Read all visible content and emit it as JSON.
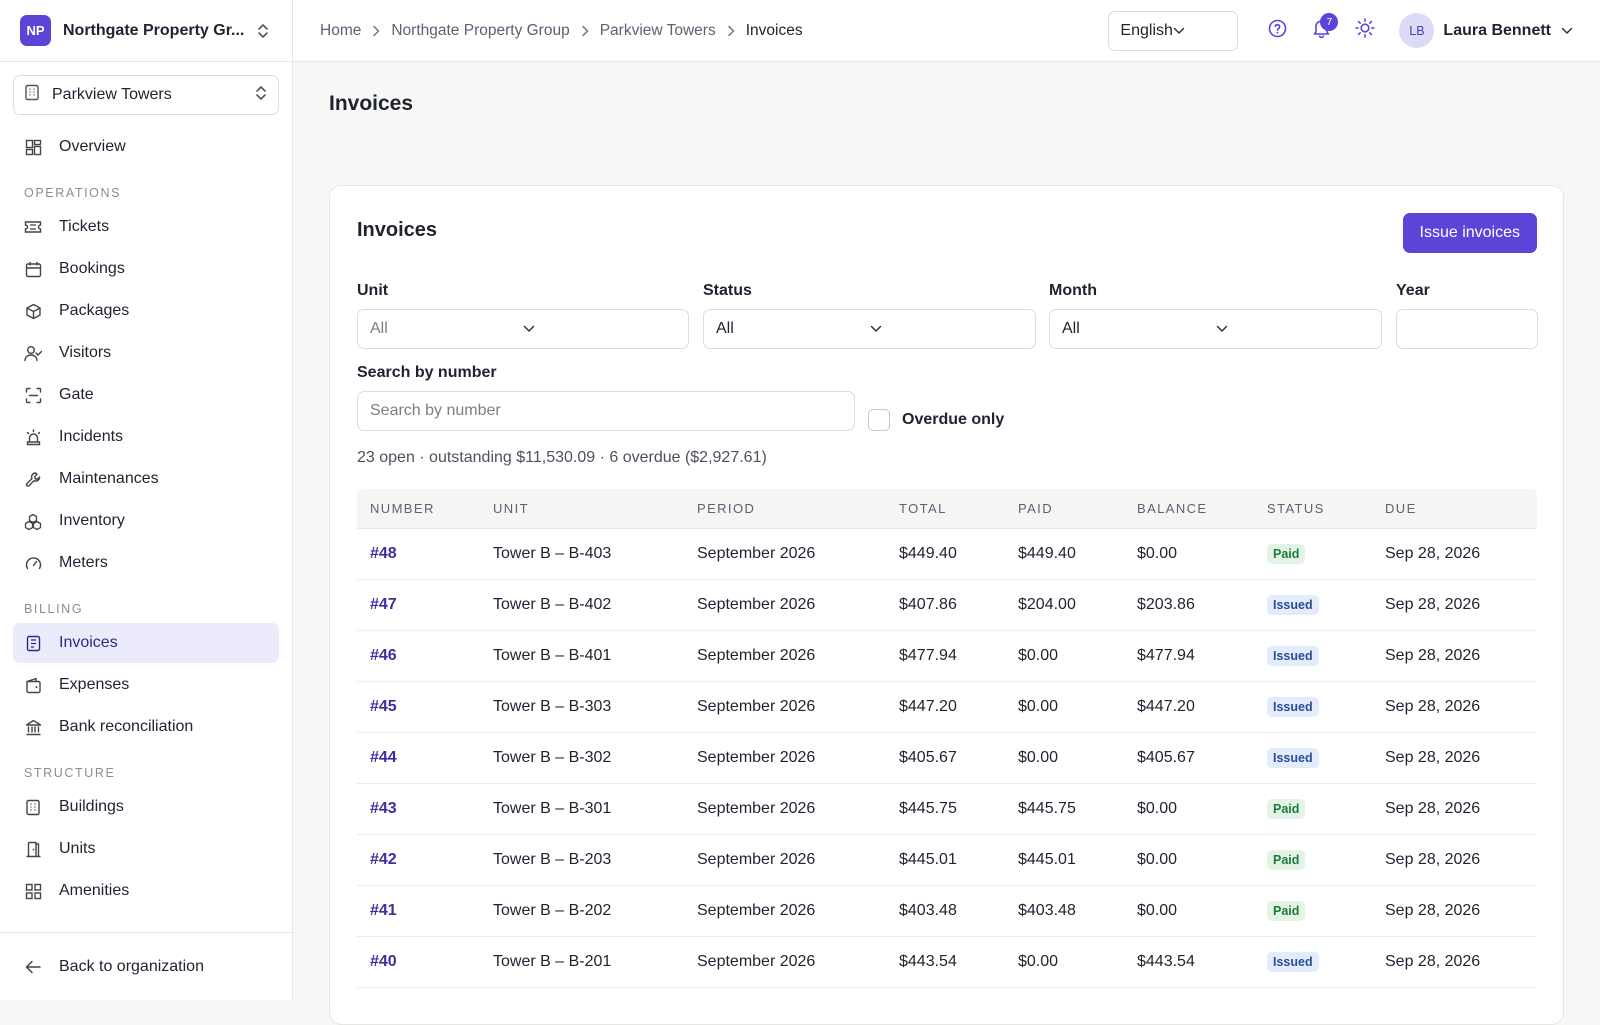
{
  "org": {
    "initials": "NP",
    "name": "Northgate Property Gr..."
  },
  "property": {
    "name": "Parkview Towers"
  },
  "nav": {
    "overview": "Overview",
    "sections": {
      "operations": "OPERATIONS",
      "billing": "BILLING",
      "structure": "STRUCTURE"
    },
    "operations": [
      "Tickets",
      "Bookings",
      "Packages",
      "Visitors",
      "Gate",
      "Incidents",
      "Maintenances",
      "Inventory",
      "Meters"
    ],
    "billing": [
      "Invoices",
      "Expenses",
      "Bank reconciliation"
    ],
    "structure": [
      "Buildings",
      "Units",
      "Amenities"
    ],
    "back": "Back to organization"
  },
  "breadcrumb": [
    "Home",
    "Northgate Property Group",
    "Parkview Towers",
    "Invoices"
  ],
  "topbar": {
    "language": "English",
    "notifications_count": "7",
    "user_initials": "LB",
    "user_name": "Laura Bennett"
  },
  "page": {
    "title": "Invoices"
  },
  "card": {
    "title": "Invoices",
    "issue_button": "Issue invoices",
    "filters": {
      "unit_label": "Unit",
      "unit_value": "All",
      "status_label": "Status",
      "status_value": "All",
      "month_label": "Month",
      "month_value": "All",
      "year_label": "Year",
      "year_value": "",
      "search_label": "Search by number",
      "search_placeholder": "Search by number",
      "overdue_label": "Overdue only"
    },
    "summary": "23 open · outstanding $11,530.09 · 6 overdue ($2,927.61)"
  },
  "table": {
    "headers": [
      "NUMBER",
      "UNIT",
      "PERIOD",
      "TOTAL",
      "PAID",
      "BALANCE",
      "STATUS",
      "DUE"
    ],
    "rows": [
      {
        "number": "#48",
        "unit": "Tower B – B-403",
        "period": "September 2026",
        "total": "$449.40",
        "paid": "$449.40",
        "balance": "$0.00",
        "status": "Paid",
        "due": "Sep 28, 2026"
      },
      {
        "number": "#47",
        "unit": "Tower B – B-402",
        "period": "September 2026",
        "total": "$407.86",
        "paid": "$204.00",
        "balance": "$203.86",
        "status": "Issued",
        "due": "Sep 28, 2026"
      },
      {
        "number": "#46",
        "unit": "Tower B – B-401",
        "period": "September 2026",
        "total": "$477.94",
        "paid": "$0.00",
        "balance": "$477.94",
        "status": "Issued",
        "due": "Sep 28, 2026"
      },
      {
        "number": "#45",
        "unit": "Tower B – B-303",
        "period": "September 2026",
        "total": "$447.20",
        "paid": "$0.00",
        "balance": "$447.20",
        "status": "Issued",
        "due": "Sep 28, 2026"
      },
      {
        "number": "#44",
        "unit": "Tower B – B-302",
        "period": "September 2026",
        "total": "$405.67",
        "paid": "$0.00",
        "balance": "$405.67",
        "status": "Issued",
        "due": "Sep 28, 2026"
      },
      {
        "number": "#43",
        "unit": "Tower B – B-301",
        "period": "September 2026",
        "total": "$445.75",
        "paid": "$445.75",
        "balance": "$0.00",
        "status": "Paid",
        "due": "Sep 28, 2026"
      },
      {
        "number": "#42",
        "unit": "Tower B – B-203",
        "period": "September 2026",
        "total": "$445.01",
        "paid": "$445.01",
        "balance": "$0.00",
        "status": "Paid",
        "due": "Sep 28, 2026"
      },
      {
        "number": "#41",
        "unit": "Tower B – B-202",
        "period": "September 2026",
        "total": "$403.48",
        "paid": "$403.48",
        "balance": "$0.00",
        "status": "Paid",
        "due": "Sep 28, 2026"
      },
      {
        "number": "#40",
        "unit": "Tower B – B-201",
        "period": "September 2026",
        "total": "$443.54",
        "paid": "$0.00",
        "balance": "$443.54",
        "status": "Issued",
        "due": "Sep 28, 2026"
      }
    ]
  },
  "colors": {
    "accent": "#5b45d9",
    "active_nav_bg": "#ecebfb",
    "paid_bg": "#e3f4e6",
    "issued_bg": "#e3ecfa"
  }
}
